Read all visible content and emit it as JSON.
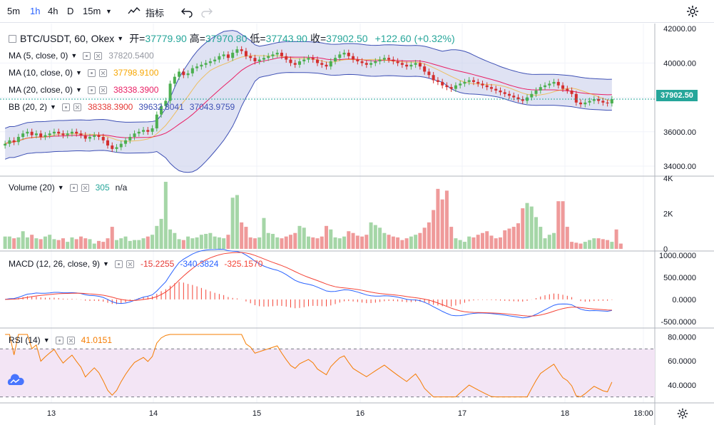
{
  "toolbar": {
    "intervals": [
      "5m",
      "1h",
      "4h",
      "D",
      "15m"
    ],
    "active_interval": "1h",
    "indicators_label": "指标"
  },
  "symbol": {
    "title": "BTC/USDT, 60, Okex",
    "open_label": "开=",
    "open_value": "37779.90",
    "high_label": "高=",
    "high_value": "37970.80",
    "low_label": "低=",
    "low_value": "37743.90",
    "close_label": "收=",
    "close_value": "37902.50",
    "change": "+122.60 (+0.32%)",
    "last_price": "37902.50"
  },
  "legends": {
    "ma5": {
      "name": "MA (5, close, 0)",
      "value": "37820.5400",
      "color": "#9598a1"
    },
    "ma10": {
      "name": "MA (10, close, 0)",
      "value": "37798.9100",
      "color": "#f7a600"
    },
    "ma20": {
      "name": "MA (20, close, 0)",
      "value": "38338.3900",
      "color": "#e91e63"
    },
    "bb": {
      "name": "BB (20, 2)",
      "v1": "38338.3900",
      "v2": "39632.8041",
      "v3": "37043.9759"
    },
    "volume": {
      "name": "Volume (20)",
      "v1": "305",
      "v2": "n/a"
    },
    "macd": {
      "name": "MACD (12, 26, close, 9)",
      "v1": "-15.2255",
      "v2": "-340.3824",
      "v3": "-325.1570"
    },
    "rsi": {
      "name": "RSI (14)",
      "v1": "41.0151"
    }
  },
  "axes": {
    "price_ticks": [
      "42000.00",
      "40000.00",
      "38000.00",
      "36000.00",
      "34000.00"
    ],
    "volume_ticks": [
      "4K",
      "2K",
      "0"
    ],
    "macd_ticks": [
      "1000.0000",
      "500.0000",
      "0.0000",
      "-500.0000"
    ],
    "rsi_ticks": [
      "80.0000",
      "60.0000",
      "40.0000"
    ],
    "time_ticks": [
      "13",
      "14",
      "15",
      "16",
      "17",
      "18",
      "18:00"
    ]
  },
  "colors": {
    "up": "#26a69a",
    "down": "#ef5350",
    "candle_up": "#4caf50",
    "candle_down": "#d32f2f",
    "bb_line": "#3f51b5",
    "bb_fill": "#c5cae9",
    "ma20": "#e91e63",
    "ma10": "#f7a600",
    "macd": "#2962ff",
    "signal": "#f44336",
    "rsi": "#f57c00",
    "rsi_band": "#f3e5f5"
  },
  "chart_data": [
    {
      "type": "candlestick",
      "title": "BTC/USDT, 60, Okex",
      "ylim": [
        33500,
        42300
      ],
      "x_labels": [
        "13",
        "14",
        "15",
        "16",
        "17",
        "18"
      ],
      "close_series": [
        35300,
        35500,
        35400,
        35700,
        35900,
        36000,
        35800,
        35900,
        35700,
        35800,
        35900,
        36000,
        35900,
        35800,
        35900,
        36000,
        35900,
        35800,
        35600,
        35700,
        35800,
        35700,
        35500,
        35200,
        35000,
        35100,
        35300,
        35500,
        35700,
        35900,
        36000,
        36100,
        36000,
        36200,
        37000,
        37500,
        37800,
        38800,
        39200,
        39500,
        39300,
        39400,
        39700,
        39800,
        39900,
        40000,
        40100,
        40200,
        40400,
        40500,
        40300,
        40600,
        40800,
        40700,
        40400,
        40300,
        40100,
        40200,
        40300,
        40400,
        40500,
        40600,
        40400,
        40200,
        40000,
        39900,
        40100,
        40200,
        40300,
        40200,
        40000,
        39900,
        39800,
        40100,
        40300,
        40500,
        40600,
        40400,
        40200,
        40100,
        40000,
        39900,
        40000,
        40100,
        40200,
        40300,
        40200,
        40100,
        40000,
        39900,
        39800,
        39900,
        40000,
        39800,
        39500,
        39300,
        39000,
        38900,
        38700,
        38600,
        38500,
        38700,
        38800,
        38900,
        39000,
        38900,
        38800,
        38700,
        38600,
        38500,
        38400,
        38300,
        38200,
        38100,
        38000,
        37900,
        37800,
        38000,
        38200,
        38400,
        38600,
        38700,
        38800,
        38900,
        38700,
        38500,
        38400,
        38200,
        37700,
        37600,
        37700,
        37800,
        37900,
        37800,
        37700,
        37650,
        37900
      ],
      "series": [
        {
          "name": "MA (20, close, 0)",
          "last": 38338.39
        },
        {
          "name": "BB (20, 2) upper",
          "last": 39632.8041
        },
        {
          "name": "BB (20, 2) lower",
          "last": 37043.9759
        }
      ]
    },
    {
      "type": "bar",
      "title": "Volume (20)",
      "ylim": [
        0,
        4000
      ],
      "values": [
        700,
        700,
        600,
        650,
        1000,
        650,
        800,
        600,
        550,
        700,
        800,
        550,
        500,
        600,
        400,
        650,
        550,
        700,
        600,
        550,
        300,
        450,
        400,
        600,
        1250,
        500,
        600,
        700,
        450,
        500,
        500,
        600,
        700,
        800,
        1300,
        1700,
        3800,
        1100,
        900,
        550,
        500,
        700,
        600,
        650,
        800,
        850,
        900,
        700,
        650,
        600,
        800,
        2900,
        3050,
        1500,
        1250,
        650,
        600,
        650,
        1750,
        900,
        850,
        650,
        600,
        700,
        800,
        900,
        1300,
        1200,
        700,
        650,
        600,
        700,
        1300,
        1100,
        650,
        600,
        700,
        1000,
        900,
        750,
        700,
        800,
        1500,
        1350,
        1200,
        900,
        800,
        700,
        650,
        500,
        600,
        700,
        800,
        900,
        1200,
        1500,
        2200,
        3400,
        2800,
        3300,
        1250,
        600,
        500,
        400,
        700,
        650,
        800,
        900,
        1000,
        750,
        600,
        650,
        1050,
        1150,
        1250,
        1450,
        2300,
        2600,
        2400,
        1800,
        1250,
        600,
        800,
        900,
        2700,
        2700,
        1250,
        400,
        350,
        300,
        400,
        500,
        600,
        600,
        550,
        500,
        400,
        1100,
        300
      ],
      "last_value": 305
    },
    {
      "type": "line",
      "title": "MACD (12, 26, close, 9)",
      "ylim": [
        -600,
        1050
      ],
      "series": [
        {
          "name": "MACD",
          "last": -340.3824
        },
        {
          "name": "Signal",
          "last": -325.157
        },
        {
          "name": "Histogram",
          "last": -15.2255
        }
      ]
    },
    {
      "type": "line",
      "title": "RSI (14)",
      "ylim": [
        25,
        85
      ],
      "bands": [
        70,
        30
      ],
      "series": [
        {
          "name": "RSI",
          "last": 41.0151
        }
      ]
    }
  ]
}
